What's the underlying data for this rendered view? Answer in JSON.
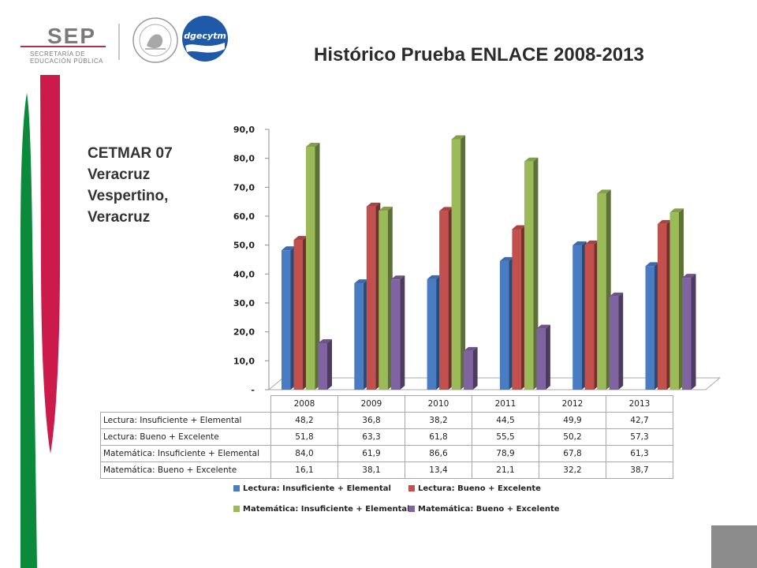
{
  "header": {
    "sep_word": "SEP",
    "sep_sub1": "SECRETARÍA DE",
    "sep_sub2": "EDUCACIÓN PÚBLICA",
    "seal_text": "ESTADOS UNIDOS MEXICANOS",
    "dgecytm_logo": "dgecytm"
  },
  "title": "Histórico Prueba ENLACE 2008-2013",
  "school": [
    "CETMAR 07",
    "Veracruz",
    "Vespertino,",
    "Veracruz"
  ],
  "colors": {
    "green_stripe": "#0b8a3b",
    "red_stripe": "#cc1a4a",
    "gray_block": "#8c8c8c"
  },
  "chart_data": {
    "type": "bar",
    "categories": [
      "2008",
      "2009",
      "2010",
      "2011",
      "2012",
      "2013"
    ],
    "series": [
      {
        "name": "Lectura: Insuficiente + Elemental",
        "color": "#4a7cc4",
        "values": [
          48.2,
          36.8,
          38.2,
          44.5,
          49.9,
          42.7
        ]
      },
      {
        "name": "Lectura: Bueno + Excelente",
        "color": "#c2504d",
        "values": [
          51.8,
          63.3,
          61.8,
          55.5,
          50.2,
          57.3
        ]
      },
      {
        "name": "Matemática: Insuficiente + Elemental",
        "color": "#9bbb59",
        "values": [
          84.0,
          61.9,
          86.6,
          78.9,
          67.8,
          61.3
        ]
      },
      {
        "name": "Matemática: Bueno + Excelente",
        "color": "#8064a2",
        "values": [
          16.1,
          38.1,
          13.4,
          21.1,
          32.2,
          38.7
        ]
      }
    ],
    "value_labels": [
      [
        "48,2",
        "36,8",
        "38,2",
        "44,5",
        "49,9",
        "42,7"
      ],
      [
        "51,8",
        "63,3",
        "61,8",
        "55,5",
        "50,2",
        "57,3"
      ],
      [
        "84,0",
        "61,9",
        "86,6",
        "78,9",
        "67,8",
        "61,3"
      ],
      [
        "16,1",
        "38,1",
        "13,4",
        "21,1",
        "32,2",
        "38,7"
      ]
    ],
    "y_ticks": [
      "-",
      "10,0",
      "20,0",
      "30,0",
      "40,0",
      "50,0",
      "60,0",
      "70,0",
      "80,0",
      "90,0"
    ],
    "ylim": [
      0,
      90
    ],
    "grid": false,
    "legend_placement": "bottom",
    "data_table": true
  }
}
